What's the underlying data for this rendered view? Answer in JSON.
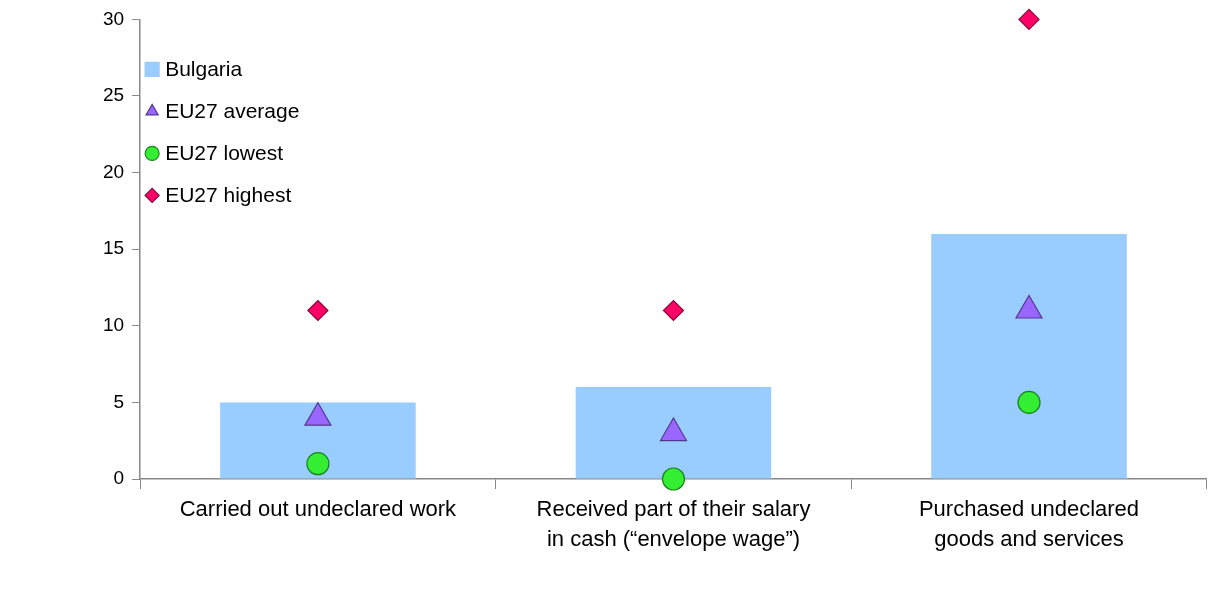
{
  "chart_data": {
    "type": "bar",
    "categories": [
      "Carried out undeclared work",
      "Received part of their salary in cash (“envelope wage”)",
      "Purchased undeclared goods and services"
    ],
    "series": [
      {
        "name": "Bulgaria",
        "color": "#99ccff",
        "values": [
          5,
          6,
          16
        ]
      },
      {
        "name": "EU27 average",
        "type": "scatter",
        "marker": "triangle",
        "color": "#9966ff",
        "values": [
          4,
          3,
          11
        ]
      },
      {
        "name": "EU27 lowest",
        "type": "scatter",
        "marker": "circle",
        "color": "#33ee33",
        "values": [
          1,
          0,
          5
        ]
      },
      {
        "name": "EU27 highest",
        "type": "scatter",
        "marker": "diamond",
        "color": "#ff0066",
        "values": [
          11,
          11,
          30
        ]
      }
    ],
    "ylim": [
      0,
      30
    ],
    "yticks": [
      0,
      5,
      10,
      15,
      20,
      25,
      30
    ],
    "grid": false,
    "legend": "top left"
  }
}
